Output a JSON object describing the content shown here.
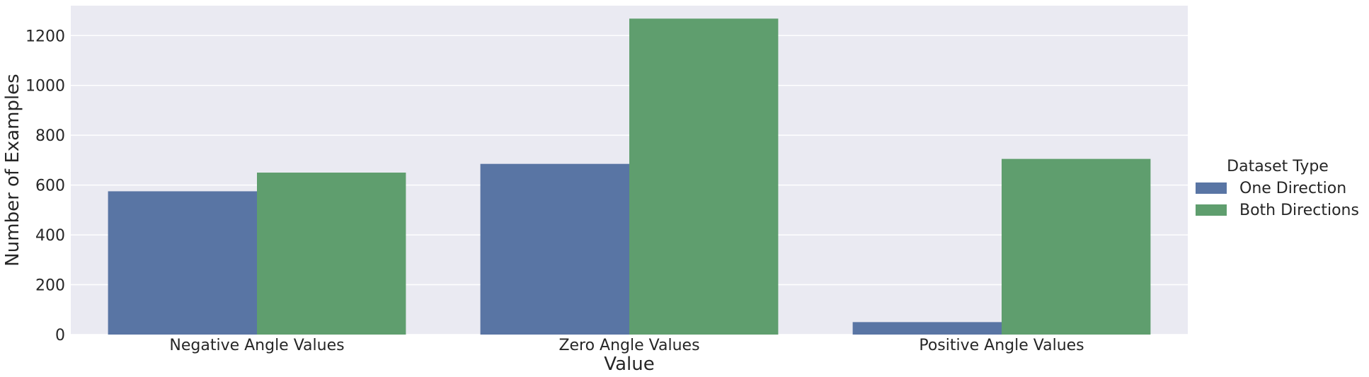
{
  "chart_data": {
    "type": "bar",
    "title": "",
    "xlabel": "Value",
    "ylabel": "Number of Examples",
    "categories": [
      "Negative Angle Values",
      "Zero Angle Values",
      "Positive Angle Values"
    ],
    "series": [
      {
        "name": "One Direction",
        "values": [
          575,
          685,
          50
        ],
        "color": "#5975a4"
      },
      {
        "name": "Both Directions",
        "values": [
          650,
          1268,
          705
        ],
        "color": "#5f9e6e"
      }
    ],
    "ylim": [
      0,
      1320
    ],
    "yticks": [
      0,
      200,
      400,
      600,
      800,
      1000,
      1200
    ],
    "grid": true,
    "legend": {
      "title": "Dataset Type",
      "placement": "right"
    },
    "colors": {
      "background": "#eaeaf2",
      "grid": "#ffffff"
    }
  }
}
